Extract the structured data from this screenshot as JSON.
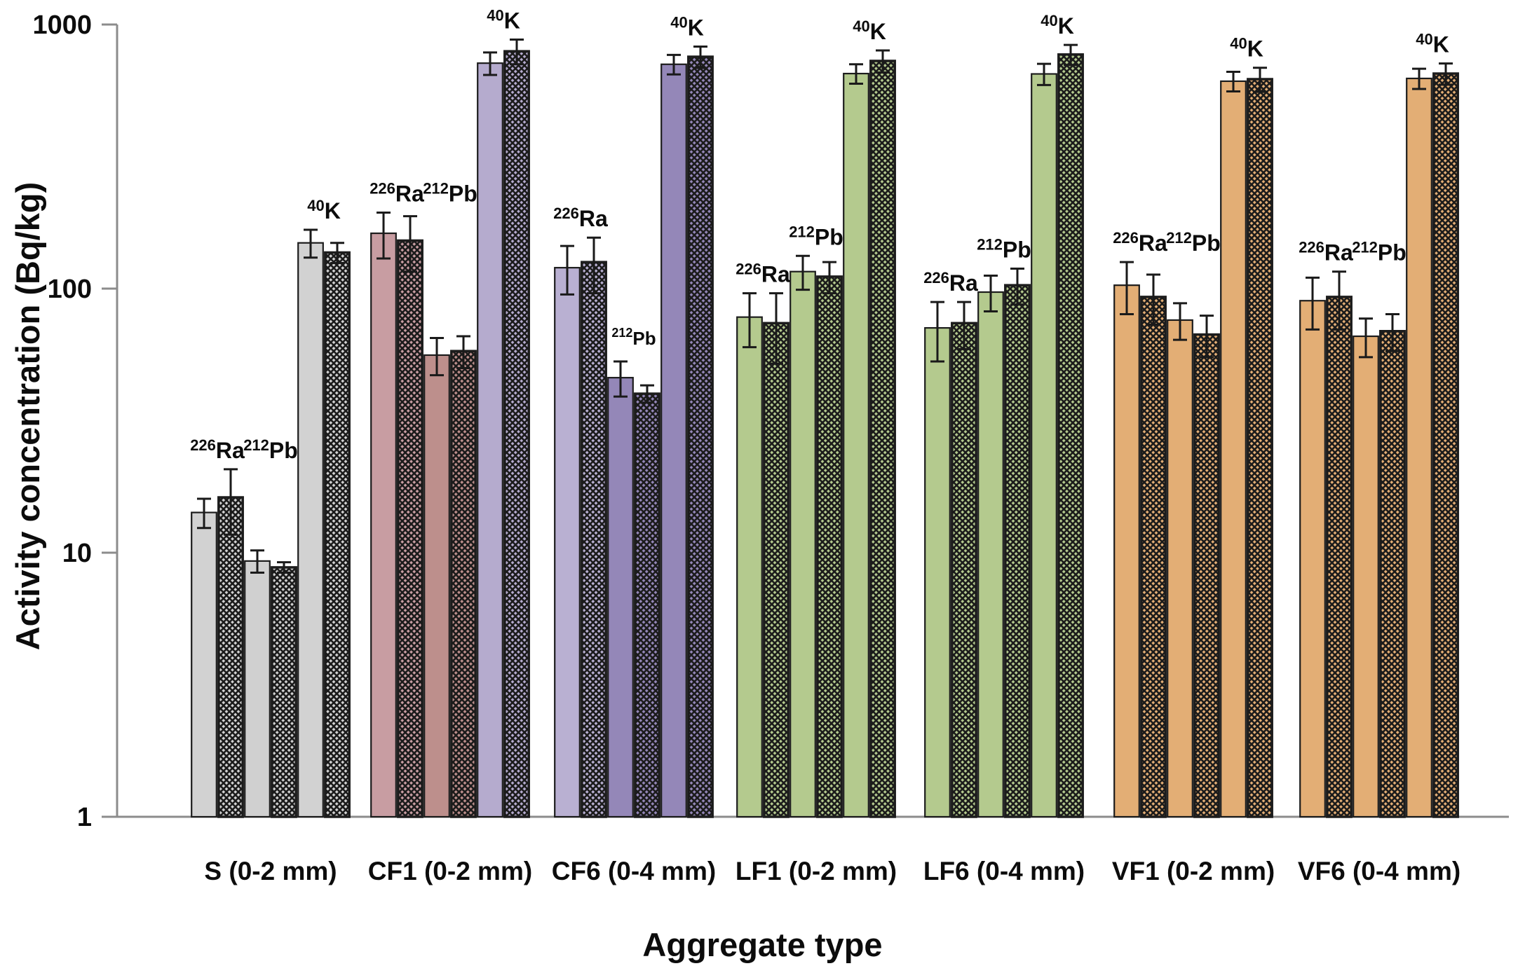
{
  "chart_data": {
    "type": "bar",
    "title": "",
    "xlabel": "Aggregate type",
    "ylabel": "Activity concentration (Bq/kg)",
    "y_scale": "log",
    "ylim": [
      1,
      1000
    ],
    "yticks": [
      "1",
      "10",
      "100",
      "1000"
    ],
    "grid": false,
    "legend": "none",
    "axis_color": "#8c8c8c",
    "bar_edge_color": "#1c1c1c",
    "error_bar_color": "#1a1a1a",
    "bar_variants": [
      "plain",
      "hatched"
    ],
    "isotopes": [
      {
        "id": "Ra",
        "sup": "226",
        "symbol": "Ra"
      },
      {
        "id": "Pb",
        "sup": "212",
        "symbol": "Pb"
      },
      {
        "id": "K",
        "sup": "40",
        "symbol": "K"
      }
    ],
    "groups": [
      {
        "label": "S (0-2 mm)",
        "colors": {
          "Ra": "#d2d2d2",
          "Pb": "#d0d0d0",
          "K": "#d2d2d2"
        },
        "bars": {
          "Ra": {
            "plain": 14.2,
            "plain_err": 1.8,
            "hatched": 16.2,
            "hatched_err": 4.5
          },
          "Pb": {
            "plain": 9.3,
            "plain_err": 0.9,
            "hatched": 8.8,
            "hatched_err": 0.4
          },
          "K": {
            "plain": 149,
            "plain_err": 18,
            "hatched": 137,
            "hatched_err": 12
          }
        }
      },
      {
        "label": "CF1 (0-2 mm)",
        "colors": {
          "Ra": "#c89da2",
          "Pb": "#bd8f8c",
          "K": "#b5abce"
        },
        "bars": {
          "Ra": {
            "plain": 162,
            "plain_err": 32,
            "hatched": 152,
            "hatched_err": 36
          },
          "Pb": {
            "plain": 56,
            "plain_err": 9,
            "hatched": 58,
            "hatched_err": 8
          },
          "K": {
            "plain": 714,
            "plain_err": 70,
            "hatched": 792,
            "hatched_err": 85
          }
        }
      },
      {
        "label": "CF6 (0-4 mm)",
        "colors": {
          "Ra": "#b9b0d2",
          "Pb": "#9487b8",
          "K": "#9487b8"
        },
        "pb_label_small": true,
        "bars": {
          "Ra": {
            "plain": 120,
            "plain_err": 25,
            "hatched": 126,
            "hatched_err": 30
          },
          "Pb": {
            "plain": 46,
            "plain_err": 7,
            "hatched": 40,
            "hatched_err": 3
          },
          "K": {
            "plain": 707,
            "plain_err": 60,
            "hatched": 755,
            "hatched_err": 70
          }
        }
      },
      {
        "label": "LF1 (0-2 mm)",
        "colors": {
          "Ra": "#b4ca8e",
          "Pb": "#b4ca8e",
          "K": "#b4ca8e"
        },
        "bars": {
          "Ra": {
            "plain": 78,
            "plain_err": 18,
            "hatched": 74,
            "hatched_err": 22
          },
          "Pb": {
            "plain": 116,
            "plain_err": 17,
            "hatched": 111,
            "hatched_err": 15
          },
          "K": {
            "plain": 652,
            "plain_err": 55,
            "hatched": 728,
            "hatched_err": 70
          }
        }
      },
      {
        "label": "LF6 (0-4 mm)",
        "colors": {
          "Ra": "#b4ca8e",
          "Pb": "#b4ca8e",
          "K": "#b4ca8e"
        },
        "bars": {
          "Ra": {
            "plain": 71,
            "plain_err": 18,
            "hatched": 74,
            "hatched_err": 15
          },
          "Pb": {
            "plain": 97,
            "plain_err": 15,
            "hatched": 103,
            "hatched_err": 16
          },
          "K": {
            "plain": 650,
            "plain_err": 60,
            "hatched": 770,
            "hatched_err": 67
          }
        }
      },
      {
        "label": "VF1 (0-2 mm)",
        "colors": {
          "Ra": "#e3ae75",
          "Pb": "#e3ae75",
          "K": "#e3ae75"
        },
        "bars": {
          "Ra": {
            "plain": 103,
            "plain_err": 23,
            "hatched": 93,
            "hatched_err": 20
          },
          "Pb": {
            "plain": 76,
            "plain_err": 12,
            "hatched": 67,
            "hatched_err": 12
          },
          "K": {
            "plain": 610,
            "plain_err": 52,
            "hatched": 621,
            "hatched_err": 65
          }
        }
      },
      {
        "label": "VF6 (0-4 mm)",
        "colors": {
          "Ra": "#e3ae75",
          "Pb": "#e3ae75",
          "K": "#e3ae75"
        },
        "bars": {
          "Ra": {
            "plain": 90,
            "plain_err": 20,
            "hatched": 93,
            "hatched_err": 23
          },
          "Pb": {
            "plain": 66,
            "plain_err": 11,
            "hatched": 69,
            "hatched_err": 11
          },
          "K": {
            "plain": 625,
            "plain_err": 55,
            "hatched": 652,
            "hatched_err": 60
          }
        }
      }
    ]
  }
}
